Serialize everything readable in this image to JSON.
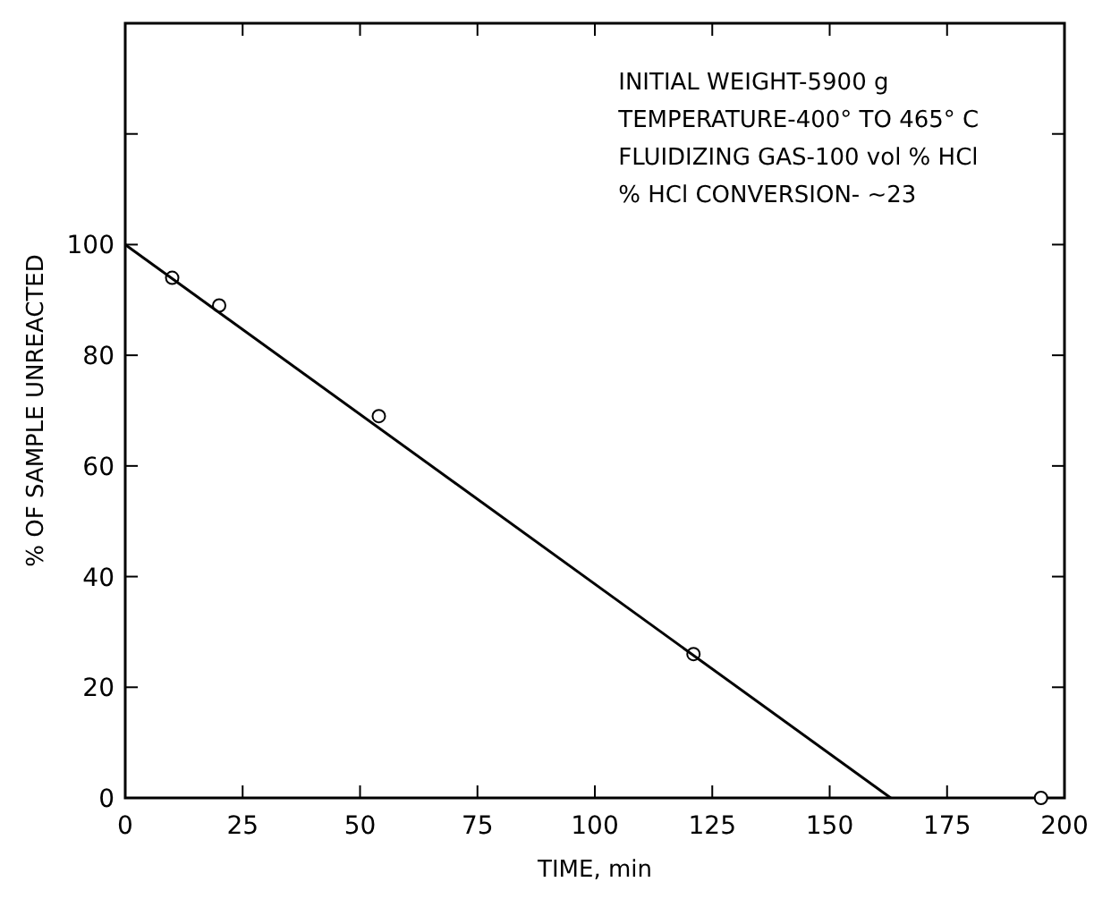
{
  "chart_data": {
    "type": "scatter",
    "xlabel": "TIME, min",
    "ylabel": "% OF SAMPLE UNREACTED",
    "annotations": [
      "INITIAL WEIGHT-5900 g",
      "TEMPERATURE-400° TO 465° C",
      "FLUIDIZING GAS-100 vol % HCl",
      "% HCl CONVERSION- ~23"
    ],
    "xlim": [
      0,
      200
    ],
    "xticks": [
      0,
      25,
      50,
      75,
      100,
      125,
      150,
      175,
      200
    ],
    "ylim": [
      0,
      140
    ],
    "yticks": [
      0,
      20,
      40,
      60,
      80,
      100,
      {
        "value": 120,
        "label": null
      },
      {
        "value": 140,
        "label": null
      }
    ],
    "grid": false,
    "marker": "circle",
    "series": [
      {
        "color": "#000000",
        "x": [
          10,
          20,
          54,
          121,
          195
        ],
        "values": [
          94,
          89,
          69,
          26,
          0
        ]
      },
      {
        "type": "line",
        "color": "#000000",
        "line_style": "solid",
        "marker": "none",
        "x": [
          0,
          163
        ],
        "values": [
          100,
          0
        ]
      }
    ]
  }
}
